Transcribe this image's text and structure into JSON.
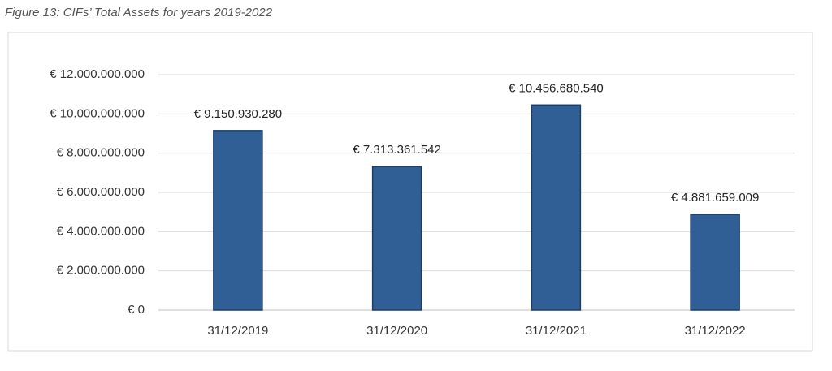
{
  "chart_data": {
    "type": "bar",
    "title": "Figure 13: CIFs’ Total Assets for years 2019-2022",
    "categories": [
      "31/12/2019",
      "31/12/2020",
      "31/12/2021",
      "31/12/2022"
    ],
    "values": [
      9150930280,
      7313361542,
      10456680540,
      4881659009
    ],
    "value_labels": [
      "€ 9.150.930.280",
      "€ 7.313.361.542",
      "€ 10.456.680.540",
      "€ 4.881.659.009"
    ],
    "color": "#2f5f95",
    "ylim": [
      0,
      12000000000
    ],
    "yticks": [
      {
        "value": 0,
        "label": "€ 0"
      },
      {
        "value": 2000000000,
        "label": "€ 2.000.000.000"
      },
      {
        "value": 4000000000,
        "label": "€ 4.000.000.000"
      },
      {
        "value": 6000000000,
        "label": "€ 6.000.000.000"
      },
      {
        "value": 8000000000,
        "label": "€ 8.000.000.000"
      },
      {
        "value": 10000000000,
        "label": "€ 10.000.000.000"
      },
      {
        "value": 12000000000,
        "label": "€ 12.000.000.000"
      }
    ],
    "grid": true
  }
}
